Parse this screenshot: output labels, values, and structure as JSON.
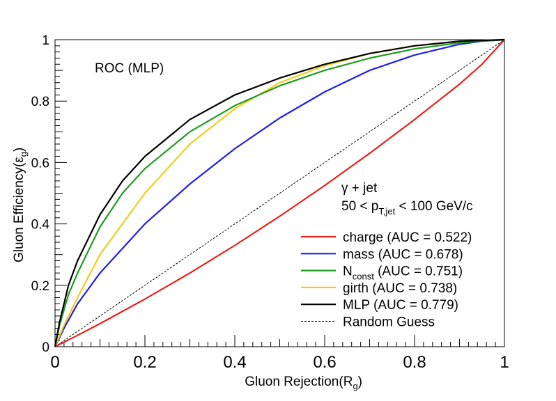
{
  "chart_data": {
    "type": "line",
    "title": "ROC (MLP)",
    "xlabel": "Gluon Rejection(R",
    "xlabel_sub": "g",
    "xlabel_close": ")",
    "ylabel": "Gluon Efficiency(ε",
    "ylabel_sub": "g",
    "ylabel_close": ")",
    "xlim": [
      0,
      1
    ],
    "ylim": [
      0,
      1
    ],
    "xticks": [
      {
        "v": 0,
        "label": "0"
      },
      {
        "v": 0.2,
        "label": "0.2"
      },
      {
        "v": 0.4,
        "label": "0.4"
      },
      {
        "v": 0.6,
        "label": "0.6"
      },
      {
        "v": 0.8,
        "label": "0.8"
      },
      {
        "v": 1,
        "label": "1"
      }
    ],
    "yticks": [
      {
        "v": 0,
        "label": "0"
      },
      {
        "v": 0.2,
        "label": "0.2"
      },
      {
        "v": 0.4,
        "label": "0.4"
      },
      {
        "v": 0.6,
        "label": "0.6"
      },
      {
        "v": 0.8,
        "label": "0.8"
      },
      {
        "v": 1,
        "label": "1"
      }
    ],
    "grid": false,
    "annotation": {
      "line1": "γ + jet",
      "line2_pre": "50 < p",
      "line2_sub": "T,jet",
      "line2_post": " < 100 GeV/c"
    },
    "legend_position": "bottom-right",
    "series": [
      {
        "name": "charge (AUC = 0.522)",
        "name_main": "charge",
        "name_sub": "",
        "name_tail": " (AUC = 0.522)",
        "color": "#e8211b",
        "dash": false,
        "x": [
          0,
          0.05,
          0.1,
          0.2,
          0.3,
          0.4,
          0.5,
          0.6,
          0.7,
          0.8,
          0.9,
          0.95,
          1
        ],
        "y": [
          0,
          0.037,
          0.075,
          0.155,
          0.24,
          0.33,
          0.425,
          0.525,
          0.63,
          0.74,
          0.855,
          0.92,
          1
        ]
      },
      {
        "name": "mass (AUC = 0.678)",
        "name_main": "mass",
        "name_sub": "",
        "name_tail": " (AUC = 0.678)",
        "color": "#1f1fe6",
        "dash": false,
        "x": [
          0,
          0.02,
          0.05,
          0.1,
          0.2,
          0.3,
          0.4,
          0.5,
          0.6,
          0.7,
          0.8,
          0.9,
          0.95,
          1
        ],
        "y": [
          0,
          0.06,
          0.14,
          0.24,
          0.4,
          0.53,
          0.645,
          0.745,
          0.83,
          0.9,
          0.95,
          0.985,
          0.995,
          1
        ]
      },
      {
        "name": "N_const (AUC = 0.751)",
        "name_main": "N",
        "name_sub": "const",
        "name_tail": " (AUC = 0.751)",
        "color": "#1e9c1e",
        "dash": false,
        "x": [
          0,
          0.01,
          0.03,
          0.05,
          0.1,
          0.15,
          0.2,
          0.3,
          0.4,
          0.5,
          0.6,
          0.7,
          0.8,
          0.9,
          1
        ],
        "y": [
          0,
          0.07,
          0.17,
          0.24,
          0.39,
          0.5,
          0.58,
          0.7,
          0.785,
          0.85,
          0.9,
          0.94,
          0.97,
          0.99,
          1
        ]
      },
      {
        "name": "girth (AUC = 0.738)",
        "name_main": "girth",
        "name_sub": "",
        "name_tail": " (AUC = 0.738)",
        "color": "#f2cc1b",
        "dash": false,
        "x": [
          0,
          0.02,
          0.05,
          0.1,
          0.2,
          0.3,
          0.4,
          0.5,
          0.6,
          0.7,
          0.8,
          0.9,
          1
        ],
        "y": [
          0,
          0.07,
          0.16,
          0.3,
          0.5,
          0.66,
          0.775,
          0.86,
          0.915,
          0.955,
          0.98,
          0.995,
          1
        ]
      },
      {
        "name": "MLP (AUC = 0.779)",
        "name_main": "MLP",
        "name_sub": "",
        "name_tail": " (AUC = 0.779)",
        "color": "#000000",
        "dash": false,
        "x": [
          0,
          0.01,
          0.03,
          0.05,
          0.1,
          0.15,
          0.2,
          0.3,
          0.4,
          0.5,
          0.6,
          0.7,
          0.8,
          0.9,
          1
        ],
        "y": [
          0,
          0.08,
          0.2,
          0.28,
          0.43,
          0.54,
          0.62,
          0.74,
          0.82,
          0.875,
          0.92,
          0.955,
          0.98,
          0.995,
          1
        ]
      },
      {
        "name": "Random Guess",
        "name_main": "Random Guess",
        "name_sub": "",
        "name_tail": "",
        "color": "#000000",
        "dash": true,
        "x": [
          0,
          1
        ],
        "y": [
          0,
          1
        ]
      }
    ]
  }
}
